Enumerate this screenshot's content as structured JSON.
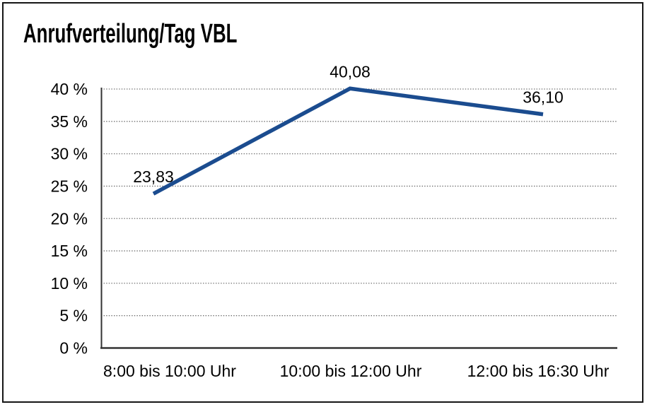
{
  "chart_data": {
    "type": "line",
    "title": "Anrufverteilung/Tag VBL",
    "categories": [
      "8:00 bis 10:00 Uhr",
      "10:00 bis 12:00 Uhr",
      "12:00 bis 16:30 Uhr"
    ],
    "values": [
      23.83,
      40.08,
      36.1
    ],
    "point_labels": [
      "23,83",
      "40,08",
      "36,10"
    ],
    "y_tick_labels": [
      "0 %",
      "5 %",
      "10 %",
      "15 %",
      "20 %",
      "25 %",
      "30 %",
      "35 %",
      "40 %"
    ],
    "ylim": [
      0,
      40
    ],
    "y_step": 5,
    "xlabel": "",
    "ylabel": "",
    "grid": "horizontal-dotted",
    "legend": "none",
    "colors": {
      "line": "#1B4C8F",
      "axis": "#333333",
      "grid": "#6E6E6E",
      "text": "#000000",
      "background": "#FFFFFF",
      "border": "#161616"
    }
  }
}
